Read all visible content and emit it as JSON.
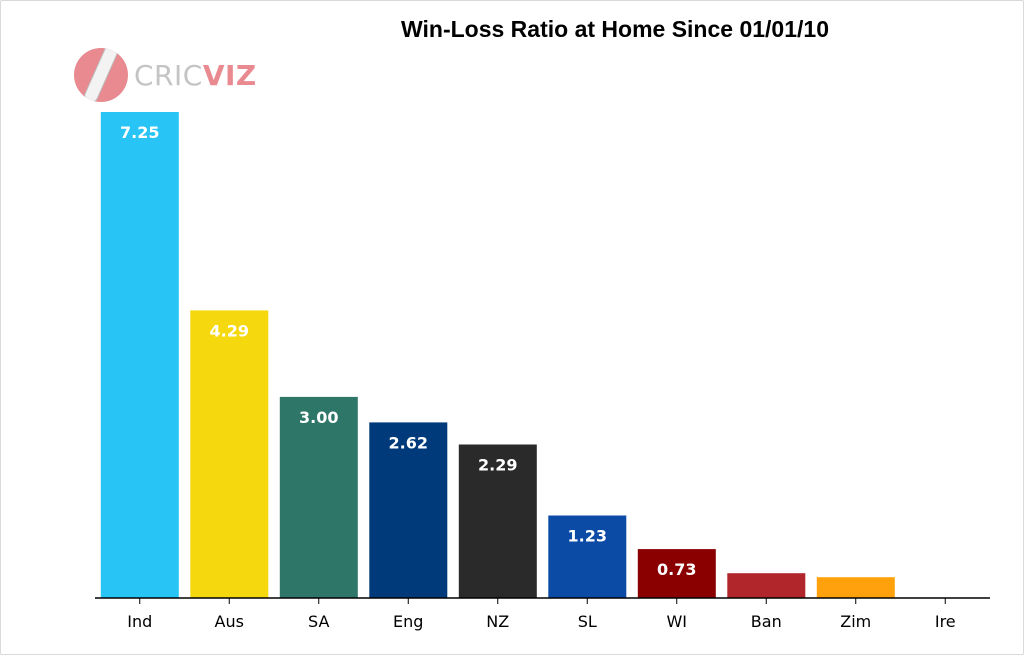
{
  "logo": {
    "text_plain": "CRIC",
    "text_bold": "VIZ",
    "icon": "cricket-bat-logo-icon",
    "color": "#e88a8f"
  },
  "chart_data": {
    "type": "bar",
    "title": "Win-Loss Ratio at Home Since 01/01/10",
    "xlabel": "",
    "ylabel": "",
    "ylim": [
      0,
      7.5
    ],
    "grid": false,
    "categories": [
      "Ind",
      "Aus",
      "SA",
      "Eng",
      "NZ",
      "SL",
      "WI",
      "Ban",
      "Zim",
      "Ire"
    ],
    "values": [
      7.25,
      4.29,
      3.0,
      2.62,
      2.29,
      1.23,
      0.73,
      0.37,
      0.31,
      0.0
    ],
    "data_labels": [
      "7.25",
      "4.29",
      "3.00",
      "2.62",
      "2.29",
      "1.23",
      "0.73",
      "",
      "",
      ""
    ],
    "colors": [
      "#29c4f6",
      "#f6d80e",
      "#2e7768",
      "#003a7a",
      "#2b2a2b",
      "#0c4ba5",
      "#8a0000",
      "#b0262a",
      "#ffa10d",
      "#ffffff"
    ]
  }
}
